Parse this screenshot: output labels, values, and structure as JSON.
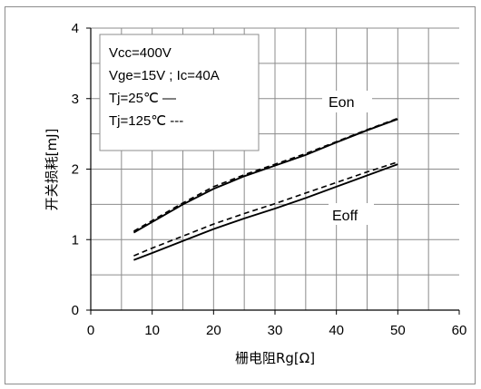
{
  "chart_data": {
    "type": "line",
    "xlabel": "栅电阻Rg[Ω]",
    "ylabel": "开关损耗[mJ]",
    "xlim": [
      0,
      60
    ],
    "ylim": [
      0,
      4
    ],
    "xticks": [
      0,
      10,
      20,
      30,
      40,
      50,
      60
    ],
    "yticks": [
      0,
      1,
      2,
      3,
      4
    ],
    "grid": true,
    "legend_box": {
      "position": "top-left",
      "lines": [
        "Vcc=400V",
        "Vge=15V ; Ic=40A",
        "Tj=25℃ —",
        "Tj=125℃ ---"
      ]
    },
    "annotations": [
      {
        "text": "Eon"
      },
      {
        "text": "Eoff"
      }
    ],
    "series": [
      {
        "group": "Eon",
        "style": "solid",
        "x": [
          7,
          10,
          15,
          20,
          25,
          30,
          35,
          40,
          45,
          50
        ],
        "y": [
          1.1,
          1.25,
          1.5,
          1.72,
          1.9,
          2.05,
          2.2,
          2.38,
          2.55,
          2.71
        ]
      },
      {
        "group": "Eon",
        "style": "dashed",
        "x": [
          7,
          10,
          15,
          20,
          25,
          30,
          35,
          40,
          45,
          50
        ],
        "y": [
          1.12,
          1.27,
          1.52,
          1.75,
          1.92,
          2.07,
          2.22,
          2.39,
          2.56,
          2.72
        ]
      },
      {
        "group": "Eoff",
        "style": "solid",
        "x": [
          7,
          10,
          15,
          20,
          25,
          30,
          35,
          40,
          45,
          50
        ],
        "y": [
          0.71,
          0.81,
          0.98,
          1.15,
          1.3,
          1.44,
          1.59,
          1.75,
          1.91,
          2.07
        ]
      },
      {
        "group": "Eoff",
        "style": "dashed",
        "x": [
          7,
          10,
          15,
          20,
          25,
          30,
          35,
          40,
          45,
          50
        ],
        "y": [
          0.77,
          0.88,
          1.05,
          1.22,
          1.37,
          1.51,
          1.66,
          1.81,
          1.96,
          2.1
        ]
      }
    ]
  }
}
